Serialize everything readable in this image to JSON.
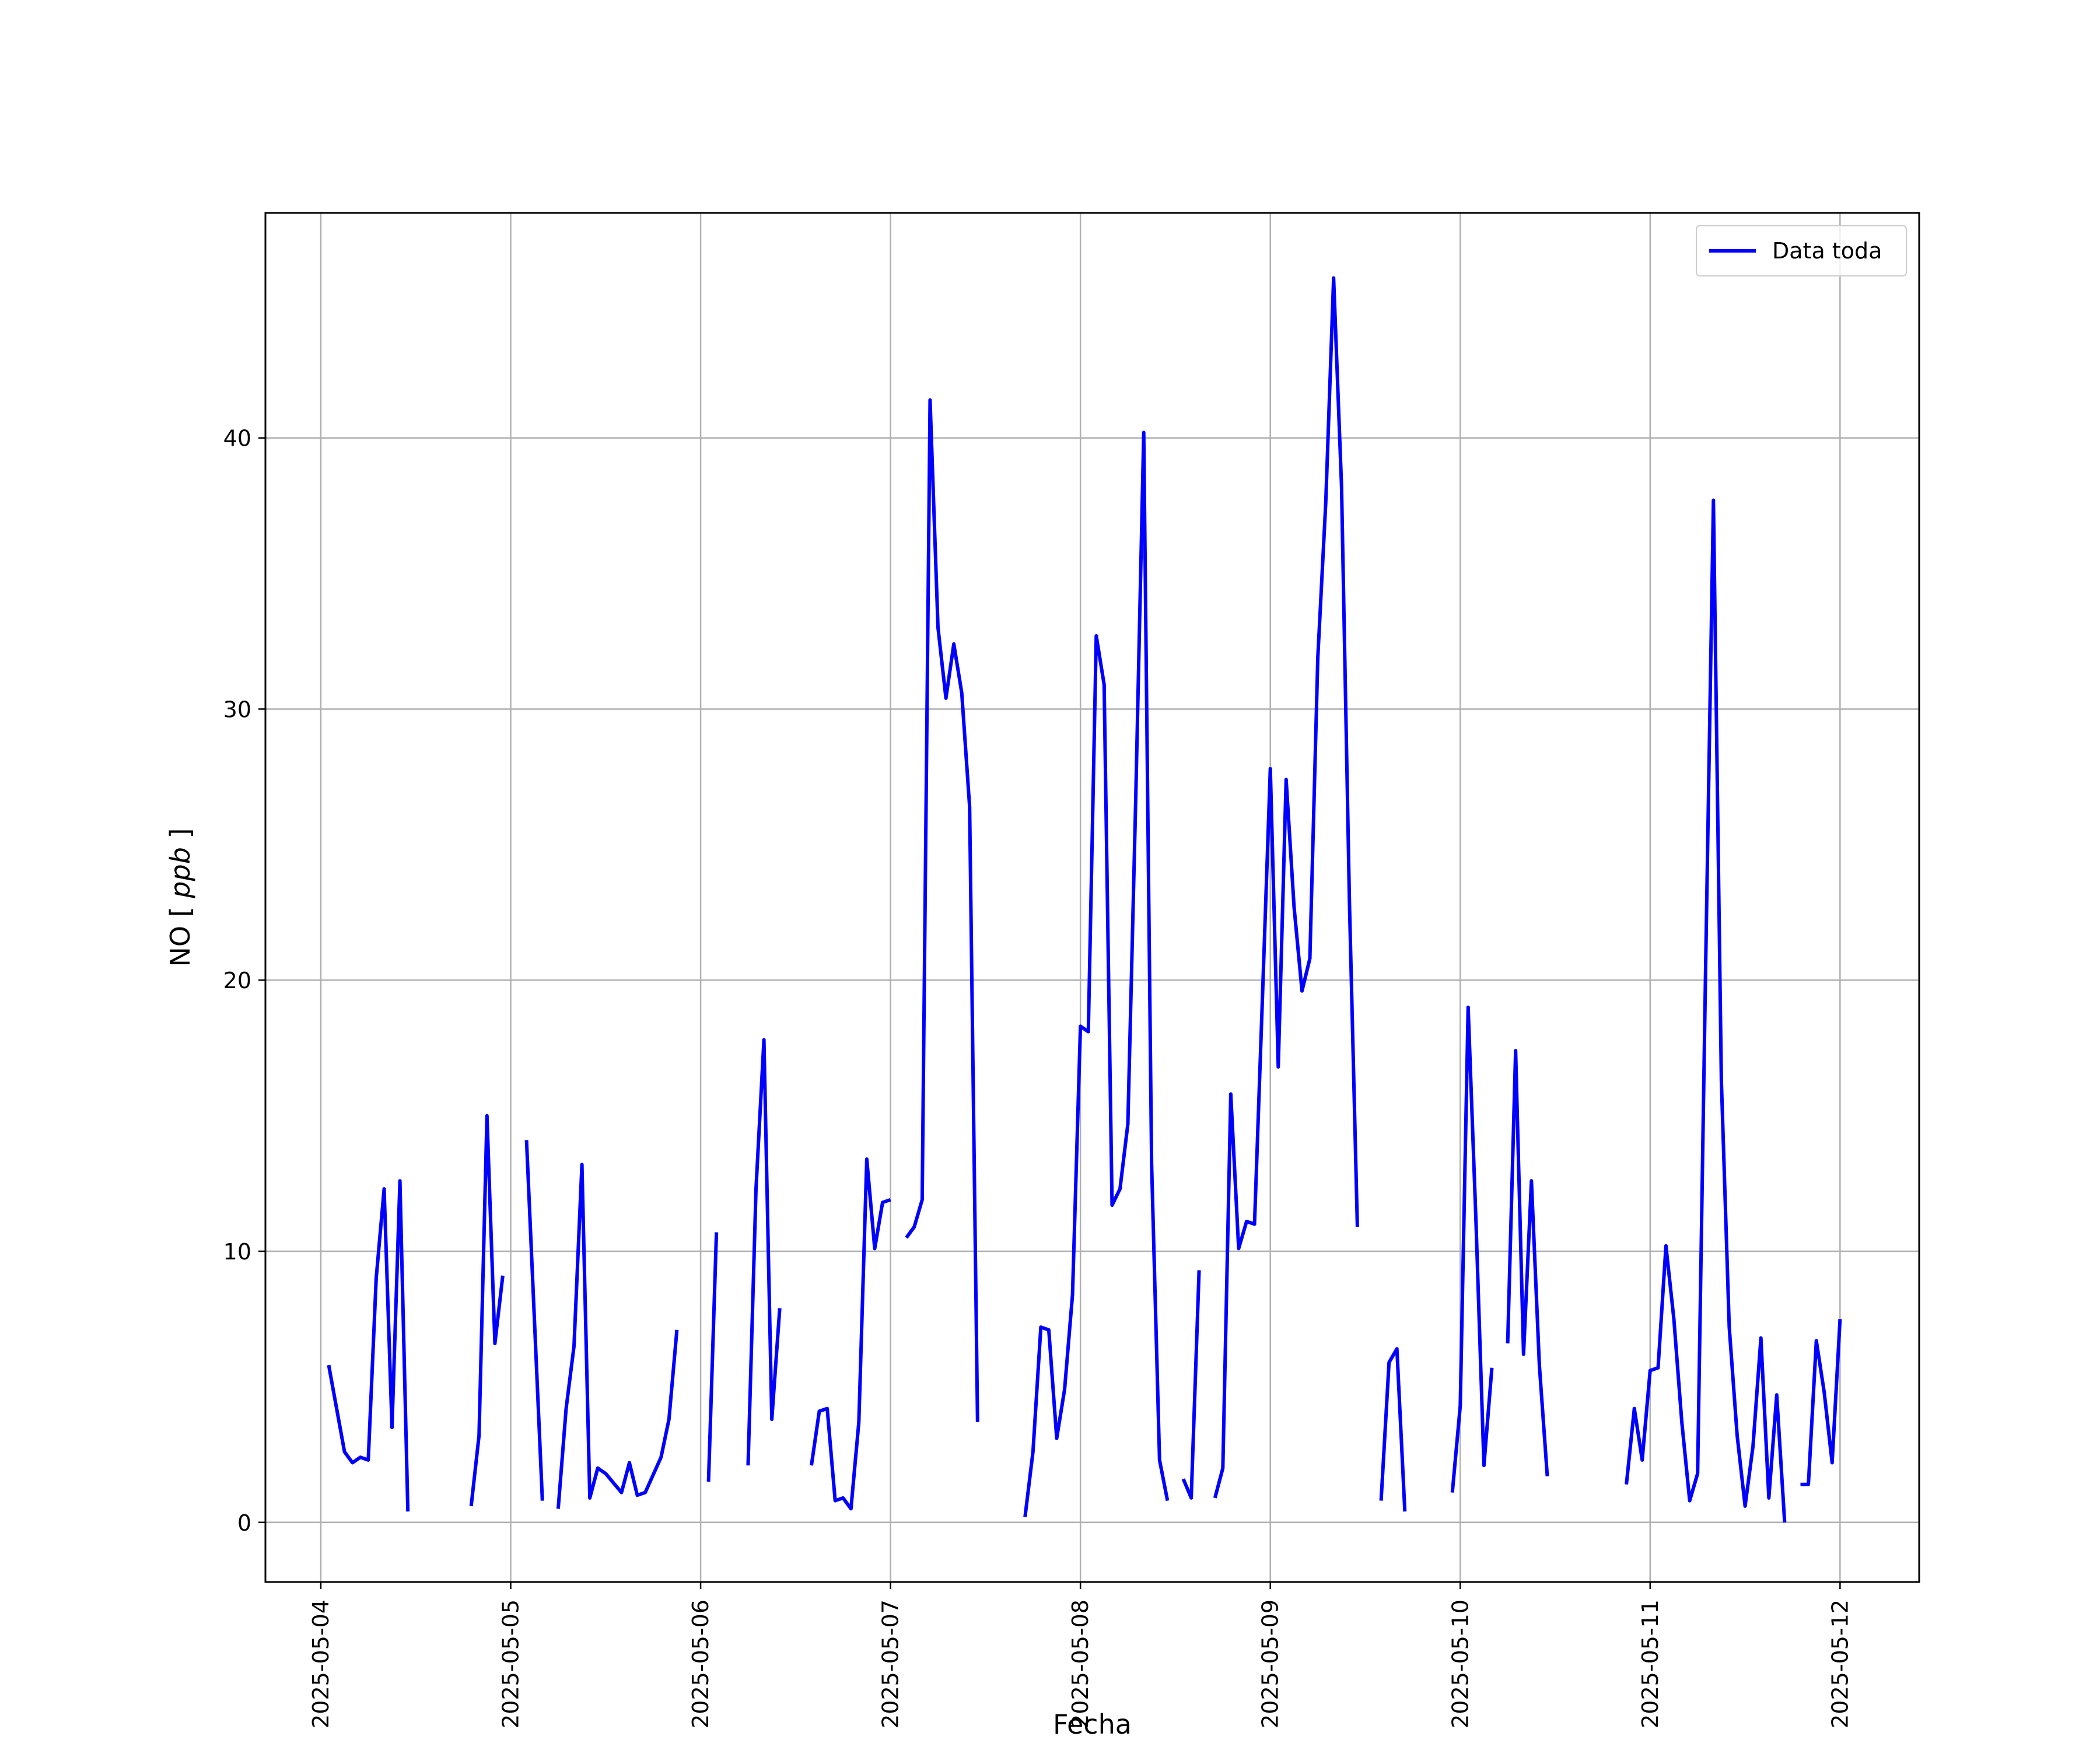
{
  "chart_data": {
    "type": "line",
    "xlabel": "Fecha",
    "ylabel_main": "NO",
    "ylabel_unit": "ppb",
    "ylim": [
      -2.2,
      48.3
    ],
    "xlim": [
      "2025-05-03T17:00",
      "2025-05-12T10:00"
    ],
    "y_ticks": [
      0,
      10,
      20,
      30,
      40
    ],
    "x_ticks": [
      "2025-05-04",
      "2025-05-05",
      "2025-05-06",
      "2025-05-07",
      "2025-05-08",
      "2025-05-09",
      "2025-05-10",
      "2025-05-11",
      "2025-05-12"
    ],
    "grid": true,
    "legend_position": "top-right",
    "line_color": "#0000ff",
    "series": [
      {
        "name": "Data toda",
        "segments": [
          [
            [
              "2025-05-04T01:00",
              5.8
            ],
            [
              "2025-05-04T03:00",
              2.6
            ],
            [
              "2025-05-04T04:00",
              2.2
            ],
            [
              "2025-05-04T05:00",
              2.4
            ],
            [
              "2025-05-04T06:00",
              2.3
            ],
            [
              "2025-05-04T07:00",
              9.0
            ],
            [
              "2025-05-04T08:00",
              12.3
            ],
            [
              "2025-05-04T09:00",
              3.5
            ],
            [
              "2025-05-04T10:00",
              12.6
            ],
            [
              "2025-05-04T11:00",
              0.4
            ]
          ],
          [
            [
              "2025-05-04T19:00",
              0.6
            ],
            [
              "2025-05-04T20:00",
              3.2
            ],
            [
              "2025-05-04T21:00",
              15.0
            ],
            [
              "2025-05-04T22:00",
              6.6
            ],
            [
              "2025-05-04T23:00",
              9.1
            ]
          ],
          [
            [
              "2025-05-05T02:00",
              14.1
            ],
            [
              "2025-05-05T04:00",
              0.8
            ]
          ],
          [
            [
              "2025-05-05T06:00",
              0.5
            ],
            [
              "2025-05-05T07:00",
              4.2
            ],
            [
              "2025-05-05T08:00",
              6.5
            ],
            [
              "2025-05-05T09:00",
              13.2
            ],
            [
              "2025-05-05T10:00",
              0.9
            ],
            [
              "2025-05-05T11:00",
              2.0
            ],
            [
              "2025-05-05T12:00",
              1.8
            ],
            [
              "2025-05-05T14:00",
              1.1
            ],
            [
              "2025-05-05T15:00",
              2.2
            ],
            [
              "2025-05-05T16:00",
              1.0
            ],
            [
              "2025-05-05T17:00",
              1.1
            ],
            [
              "2025-05-05T19:00",
              2.4
            ],
            [
              "2025-05-05T20:00",
              3.8
            ],
            [
              "2025-05-05T21:00",
              7.1
            ]
          ],
          [
            [
              "2025-05-06T01:00",
              1.5
            ],
            [
              "2025-05-06T02:00",
              10.7
            ]
          ],
          [
            [
              "2025-05-06T06:00",
              2.1
            ],
            [
              "2025-05-06T07:00",
              12.3
            ],
            [
              "2025-05-06T08:00",
              17.8
            ],
            [
              "2025-05-06T09:00",
              3.8
            ],
            [
              "2025-05-06T10:00",
              7.9
            ]
          ],
          [
            [
              "2025-05-06T14:00",
              2.1
            ],
            [
              "2025-05-06T15:00",
              4.1
            ],
            [
              "2025-05-06T16:00",
              4.2
            ],
            [
              "2025-05-06T17:00",
              0.8
            ],
            [
              "2025-05-06T18:00",
              0.9
            ],
            [
              "2025-05-06T19:00",
              0.5
            ],
            [
              "2025-05-06T20:00",
              3.7
            ],
            [
              "2025-05-06T21:00",
              13.4
            ],
            [
              "2025-05-06T22:00",
              10.1
            ],
            [
              "2025-05-06T23:00",
              11.8
            ],
            [
              "2025-05-07T00:00",
              11.9
            ]
          ],
          [
            [
              "2025-05-07T02:00",
              10.5
            ],
            [
              "2025-05-07T03:00",
              10.9
            ],
            [
              "2025-05-07T04:00",
              11.9
            ],
            [
              "2025-05-07T05:00",
              41.4
            ],
            [
              "2025-05-07T06:00",
              33.0
            ],
            [
              "2025-05-07T07:00",
              30.4
            ],
            [
              "2025-05-07T08:00",
              32.4
            ],
            [
              "2025-05-07T09:00",
              30.6
            ],
            [
              "2025-05-07T10:00",
              26.4
            ],
            [
              "2025-05-07T11:00",
              3.7
            ]
          ],
          [
            [
              "2025-05-07T17:00",
              0.2
            ],
            [
              "2025-05-07T18:00",
              2.6
            ],
            [
              "2025-05-07T19:00",
              7.2
            ],
            [
              "2025-05-07T20:00",
              7.1
            ],
            [
              "2025-05-07T21:00",
              3.1
            ],
            [
              "2025-05-07T22:00",
              4.9
            ],
            [
              "2025-05-07T23:00",
              8.4
            ],
            [
              "2025-05-08T00:00",
              18.3
            ],
            [
              "2025-05-08T01:00",
              18.1
            ],
            [
              "2025-05-08T02:00",
              32.7
            ],
            [
              "2025-05-08T03:00",
              30.9
            ],
            [
              "2025-05-08T04:00",
              11.7
            ],
            [
              "2025-05-08T05:00",
              12.3
            ],
            [
              "2025-05-08T06:00",
              14.7
            ],
            [
              "2025-05-08T07:00",
              26.8
            ],
            [
              "2025-05-08T08:00",
              40.2
            ],
            [
              "2025-05-08T09:00",
              13.2
            ],
            [
              "2025-05-08T10:00",
              2.3
            ],
            [
              "2025-05-08T11:00",
              0.8
            ]
          ],
          [
            [
              "2025-05-08T13:00",
              1.6
            ],
            [
              "2025-05-08T14:00",
              0.9
            ],
            [
              "2025-05-08T15:00",
              9.3
            ]
          ],
          [
            [
              "2025-05-08T17:00",
              0.9
            ],
            [
              "2025-05-08T18:00",
              2.0
            ],
            [
              "2025-05-08T19:00",
              15.8
            ],
            [
              "2025-05-08T20:00",
              10.1
            ],
            [
              "2025-05-08T21:00",
              11.1
            ],
            [
              "2025-05-08T22:00",
              11.0
            ],
            [
              "2025-05-08T23:00",
              19.3
            ],
            [
              "2025-05-09T00:00",
              27.8
            ],
            [
              "2025-05-09T01:00",
              16.8
            ],
            [
              "2025-05-09T02:00",
              27.4
            ],
            [
              "2025-05-09T03:00",
              22.7
            ],
            [
              "2025-05-09T04:00",
              19.6
            ],
            [
              "2025-05-09T05:00",
              20.8
            ],
            [
              "2025-05-09T06:00",
              31.9
            ],
            [
              "2025-05-09T07:00",
              37.6
            ],
            [
              "2025-05-09T08:00",
              45.9
            ],
            [
              "2025-05-09T09:00",
              38.2
            ],
            [
              "2025-05-09T10:00",
              22.9
            ],
            [
              "2025-05-09T11:00",
              10.9
            ]
          ],
          [
            [
              "2025-05-09T14:00",
              0.8
            ],
            [
              "2025-05-09T15:00",
              5.9
            ],
            [
              "2025-05-09T16:00",
              6.4
            ],
            [
              "2025-05-09T17:00",
              0.4
            ]
          ],
          [
            [
              "2025-05-09T23:00",
              1.1
            ],
            [
              "2025-05-10T00:00",
              4.3
            ],
            [
              "2025-05-10T01:00",
              19.0
            ],
            [
              "2025-05-10T02:00",
              11.0
            ],
            [
              "2025-05-10T03:00",
              2.1
            ],
            [
              "2025-05-10T04:00",
              5.7
            ]
          ],
          [
            [
              "2025-05-10T06:00",
              6.6
            ],
            [
              "2025-05-10T07:00",
              17.4
            ],
            [
              "2025-05-10T08:00",
              6.2
            ],
            [
              "2025-05-10T09:00",
              12.6
            ],
            [
              "2025-05-10T10:00",
              5.8
            ],
            [
              "2025-05-10T11:00",
              1.7
            ]
          ],
          [
            [
              "2025-05-10T21:00",
              1.4
            ],
            [
              "2025-05-10T22:00",
              4.2
            ],
            [
              "2025-05-10T23:00",
              2.3
            ],
            [
              "2025-05-11T00:00",
              5.6
            ],
            [
              "2025-05-11T01:00",
              5.7
            ],
            [
              "2025-05-11T02:00",
              10.2
            ],
            [
              "2025-05-11T03:00",
              7.5
            ],
            [
              "2025-05-11T04:00",
              3.7
            ],
            [
              "2025-05-11T05:00",
              0.8
            ],
            [
              "2025-05-11T06:00",
              1.8
            ],
            [
              "2025-05-11T07:00",
              20.3
            ],
            [
              "2025-05-11T08:00",
              37.7
            ],
            [
              "2025-05-11T09:00",
              16.3
            ],
            [
              "2025-05-11T10:00",
              7.2
            ],
            [
              "2025-05-11T11:00",
              3.2
            ],
            [
              "2025-05-11T12:00",
              0.6
            ],
            [
              "2025-05-11T13:00",
              2.8
            ],
            [
              "2025-05-11T14:00",
              6.8
            ],
            [
              "2025-05-11T15:00",
              0.9
            ],
            [
              "2025-05-11T16:00",
              4.7
            ],
            [
              "2025-05-11T17:00",
              0.0
            ]
          ],
          [
            [
              "2025-05-11T19:00",
              1.4
            ],
            [
              "2025-05-11T20:00",
              1.4
            ],
            [
              "2025-05-11T21:00",
              6.7
            ],
            [
              "2025-05-11T22:00",
              4.8
            ],
            [
              "2025-05-11T23:00",
              2.2
            ],
            [
              "2025-05-12T00:00",
              7.5
            ]
          ]
        ]
      }
    ]
  }
}
